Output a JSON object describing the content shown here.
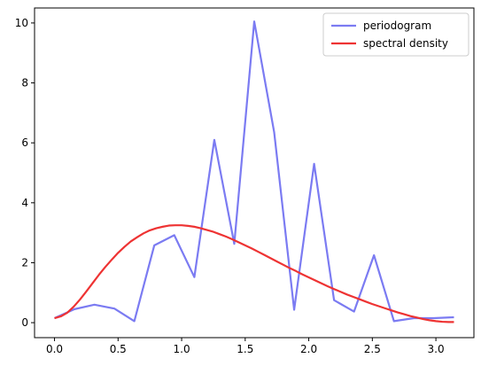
{
  "chart_data": {
    "type": "line",
    "title": "",
    "xlabel": "",
    "ylabel": "",
    "xlim": [
      -0.157,
      3.299
    ],
    "ylim": [
      -0.5,
      10.5
    ],
    "xticks": [
      0.0,
      0.5,
      1.0,
      1.5,
      2.0,
      2.5,
      3.0
    ],
    "xtick_labels": [
      "0.0",
      "0.5",
      "1.0",
      "1.5",
      "2.0",
      "2.5",
      "3.0"
    ],
    "yticks": [
      0,
      2,
      4,
      6,
      8,
      10
    ],
    "ytick_labels": [
      "0",
      "2",
      "4",
      "6",
      "8",
      "10"
    ],
    "grid": false,
    "legend_position": "top-right",
    "series": [
      {
        "name": "periodogram",
        "color": "#7b7bf2",
        "x": [
          0.0,
          0.157,
          0.314,
          0.471,
          0.628,
          0.785,
          0.942,
          1.1,
          1.257,
          1.414,
          1.571,
          1.728,
          1.885,
          2.042,
          2.199,
          2.356,
          2.513,
          2.67,
          2.827,
          2.985,
          3.142
        ],
        "y": [
          0.15,
          0.45,
          0.6,
          0.47,
          0.05,
          2.58,
          2.92,
          1.52,
          6.1,
          2.63,
          10.05,
          6.35,
          0.43,
          5.3,
          0.75,
          0.37,
          2.25,
          0.05,
          0.15,
          0.15,
          0.18
        ]
      },
      {
        "name": "spectral density",
        "color": "#ee3333",
        "x": [
          0.0,
          0.05,
          0.1,
          0.15,
          0.2,
          0.25,
          0.3,
          0.35,
          0.4,
          0.45,
          0.5,
          0.55,
          0.6,
          0.65,
          0.7,
          0.75,
          0.8,
          0.85,
          0.9,
          0.95,
          1.0,
          1.05,
          1.1,
          1.15,
          1.2,
          1.25,
          1.3,
          1.35,
          1.4,
          1.45,
          1.5,
          1.55,
          1.6,
          1.65,
          1.7,
          1.75,
          1.8,
          1.85,
          1.9,
          1.95,
          2.0,
          2.05,
          2.1,
          2.15,
          2.2,
          2.25,
          2.3,
          2.35,
          2.4,
          2.45,
          2.5,
          2.55,
          2.6,
          2.65,
          2.7,
          2.75,
          2.8,
          2.85,
          2.9,
          2.95,
          3.0,
          3.05,
          3.1,
          3.142
        ],
        "y": [
          0.15,
          0.21,
          0.33,
          0.53,
          0.77,
          1.04,
          1.32,
          1.6,
          1.86,
          2.1,
          2.33,
          2.53,
          2.71,
          2.85,
          2.98,
          3.08,
          3.15,
          3.2,
          3.24,
          3.25,
          3.25,
          3.23,
          3.2,
          3.15,
          3.09,
          3.03,
          2.95,
          2.87,
          2.78,
          2.68,
          2.58,
          2.48,
          2.37,
          2.26,
          2.15,
          2.04,
          1.93,
          1.82,
          1.72,
          1.61,
          1.51,
          1.41,
          1.31,
          1.21,
          1.12,
          1.03,
          0.94,
          0.86,
          0.78,
          0.7,
          0.62,
          0.55,
          0.48,
          0.41,
          0.34,
          0.28,
          0.22,
          0.17,
          0.12,
          0.08,
          0.05,
          0.03,
          0.02,
          0.02
        ]
      }
    ]
  }
}
